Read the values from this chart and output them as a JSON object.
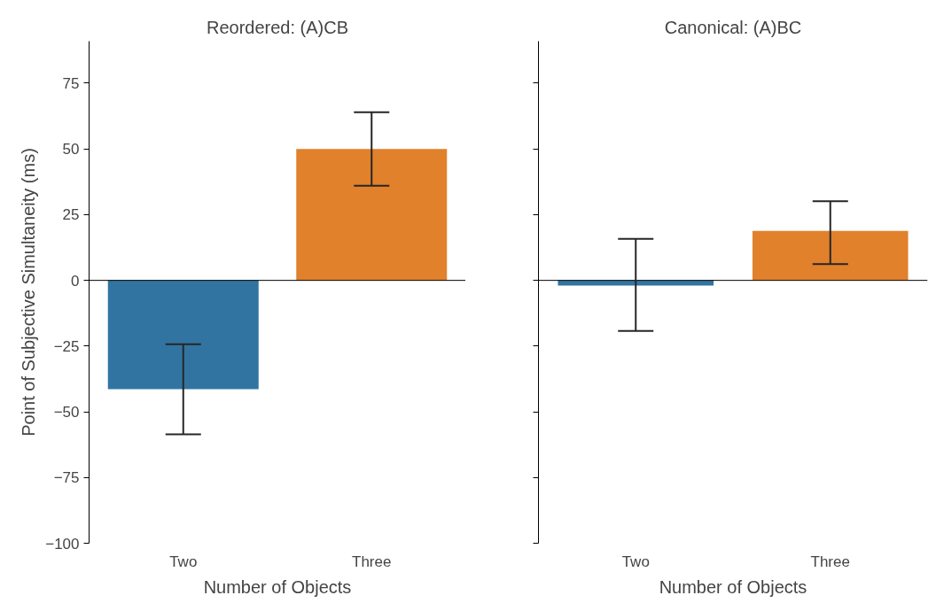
{
  "chart_data": [
    {
      "type": "bar",
      "title": "Reordered: (A)CB",
      "xlabel": "Number of Objects",
      "ylabel": "Point of Subjective Simultaneity (ms)",
      "categories": [
        "Two",
        "Three"
      ],
      "values": [
        -41.4,
        50
      ],
      "colors": [
        "#3274a1",
        "#e1812c"
      ],
      "errors": [
        [
          -58.6,
          -24.3
        ],
        [
          36,
          64
        ]
      ],
      "ylim": [
        -100,
        91
      ],
      "yticks": [
        {
          "value": -100,
          "label": "−100"
        },
        {
          "value": -75,
          "label": "−75"
        },
        {
          "value": -50,
          "label": "−50"
        },
        {
          "value": -25,
          "label": "−25"
        },
        0,
        25,
        50,
        75
      ],
      "ref_lines": [
        {
          "axis": "y",
          "value": 0,
          "color": "#000000"
        }
      ],
      "grid": false
    },
    {
      "type": "bar",
      "title": "Canonical: (A)BC",
      "xlabel": "Number of Objects",
      "categories": [
        "Two",
        "Three"
      ],
      "values": [
        -2,
        18.8
      ],
      "colors": [
        "#3274a1",
        "#e1812c"
      ],
      "errors": [
        [
          -19.2,
          15.8
        ],
        [
          6.2,
          30.1
        ]
      ],
      "ylim": [
        -100,
        91
      ],
      "yticks": [
        {
          "value": -100,
          "label": null
        },
        {
          "value": -75,
          "label": null
        },
        {
          "value": -50,
          "label": null
        },
        {
          "value": -25,
          "label": null
        },
        {
          "value": 0,
          "label": null
        },
        {
          "value": 25,
          "label": null
        },
        {
          "value": 50,
          "label": null
        },
        {
          "value": 75,
          "label": null
        }
      ],
      "ref_lines": [
        {
          "axis": "y",
          "value": 0,
          "color": "#000000"
        }
      ],
      "grid": false,
      "tick_labels": "x"
    }
  ]
}
